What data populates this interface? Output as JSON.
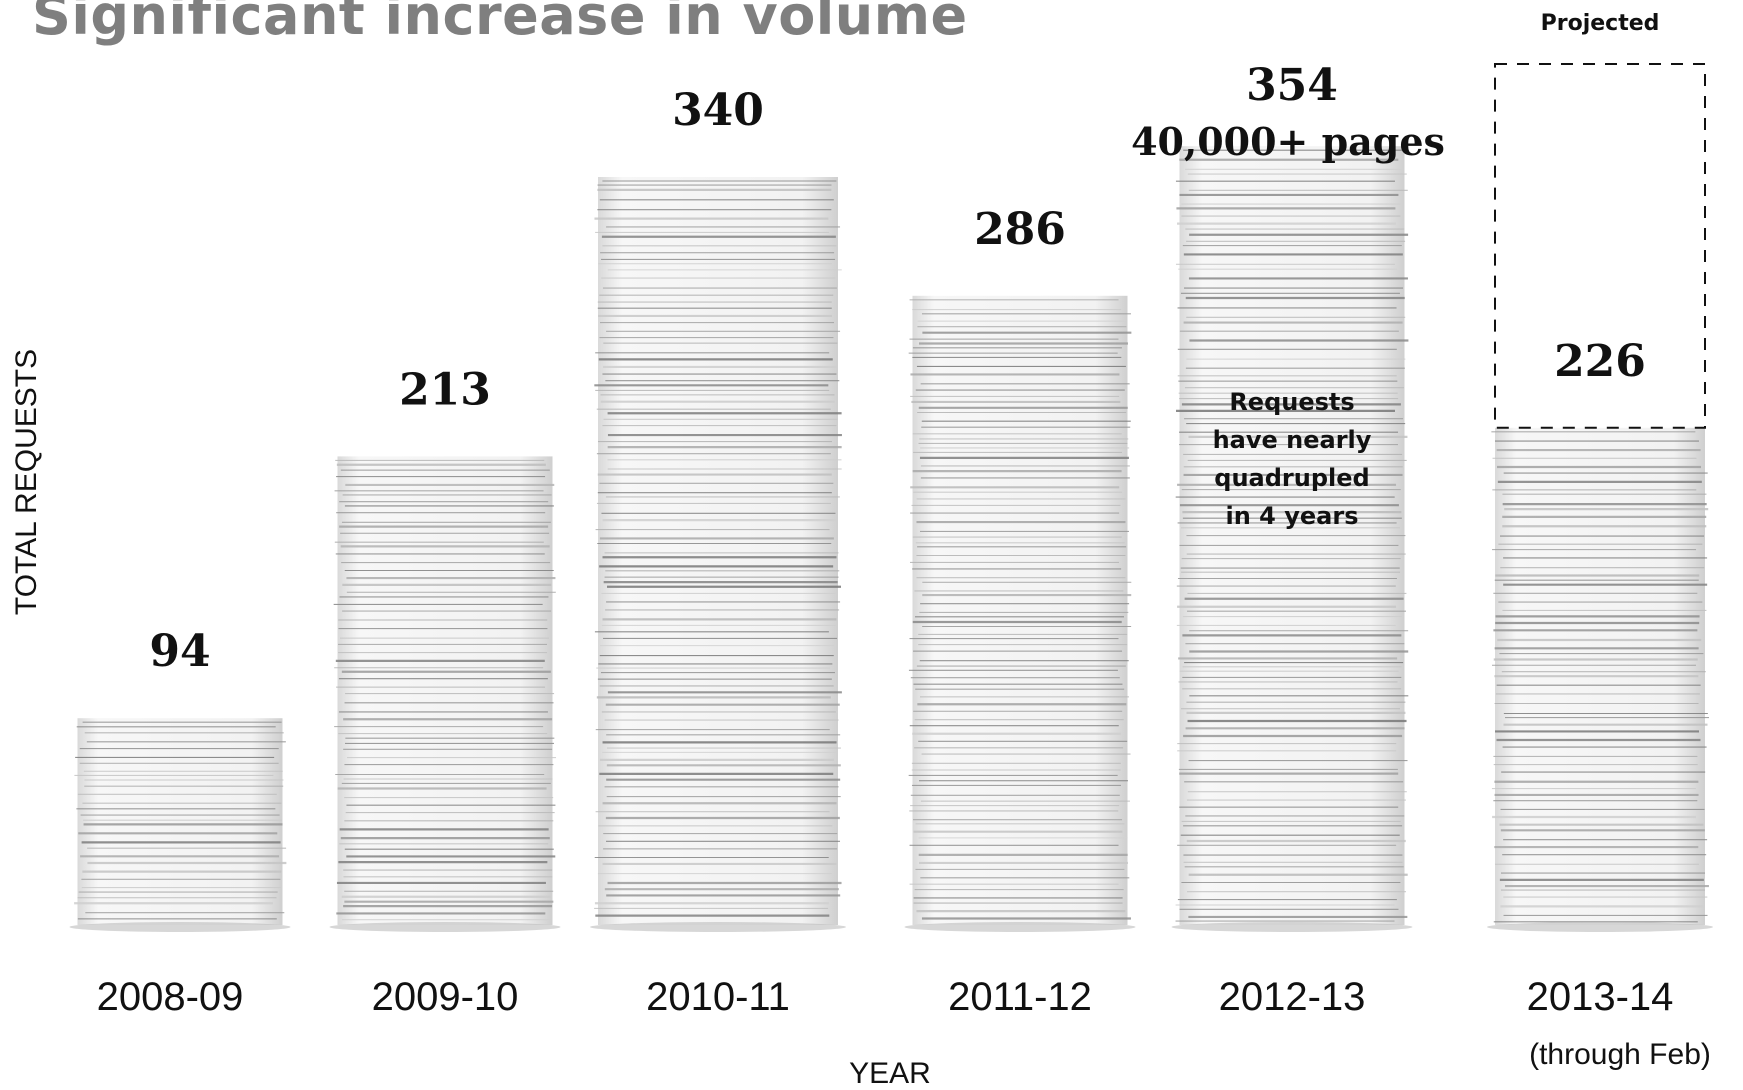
{
  "title": "Significant increase in volume",
  "chart_data": {
    "type": "bar",
    "categories": [
      "2008-09",
      "2009-10",
      "2010-11",
      "2011-12",
      "2012-13",
      "2013-14"
    ],
    "category_note": "(through Feb)",
    "values": [
      94,
      213,
      340,
      286,
      354,
      226
    ],
    "xlabel": "YEAR",
    "ylabel": "TOTAL REQUESTS",
    "pages_label": "40,000+ pages",
    "annotation": [
      "Requests",
      "have nearly",
      "quadrupled",
      "in 4 years"
    ],
    "projected_label": "Projected",
    "grid": false,
    "legend": "none"
  },
  "colors": {
    "title": "#7f7f7f",
    "paper": "#f4f4f4",
    "paper_edge": "#8a8a8a",
    "text": "#111111"
  }
}
